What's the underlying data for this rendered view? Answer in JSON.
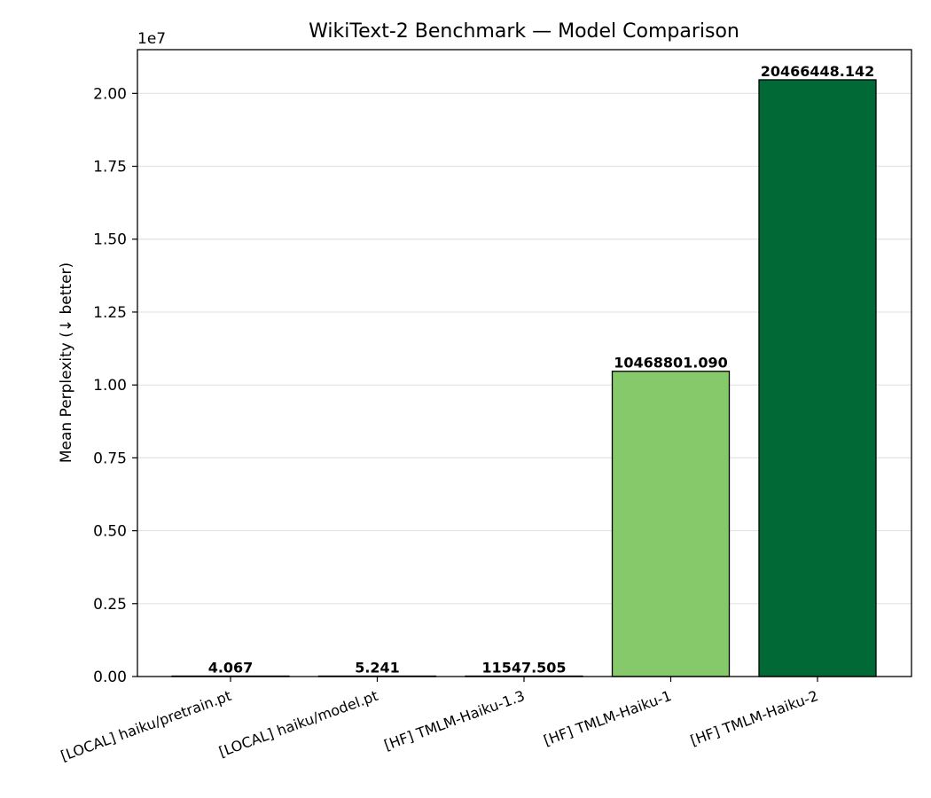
{
  "chart_data": {
    "type": "bar",
    "title": "WikiText-2 Benchmark — Model Comparison",
    "xlabel": "",
    "ylabel": "Mean Perplexity (↓ better)",
    "y_multiplier_label": "1e7",
    "y_scale": 10000000,
    "ylim": [
      0,
      21500000
    ],
    "yticks": [
      0,
      2500000,
      5000000,
      7500000,
      10000000,
      12500000,
      15000000,
      17500000,
      20000000
    ],
    "ytick_labels": [
      "0.00",
      "0.25",
      "0.50",
      "0.75",
      "1.00",
      "1.25",
      "1.50",
      "1.75",
      "2.00"
    ],
    "grid": "y",
    "categories": [
      "[LOCAL] haiku/pretrain.pt",
      "[LOCAL] haiku/model.pt",
      "[HF] TMLM-Haiku-1.3",
      "[HF] TMLM-Haiku-1",
      "[HF] TMLM-Haiku-2"
    ],
    "values": [
      4.067,
      5.241,
      11547.505,
      10468801.09,
      20466448.142
    ],
    "data_labels": [
      "4.067",
      "5.241",
      "11547.505",
      "10468801.090",
      "20466448.142"
    ],
    "colors": [
      "#f7fcf5",
      "#c8e9c1",
      "#c8e9c1",
      "#85c96a",
      "#006936"
    ]
  }
}
